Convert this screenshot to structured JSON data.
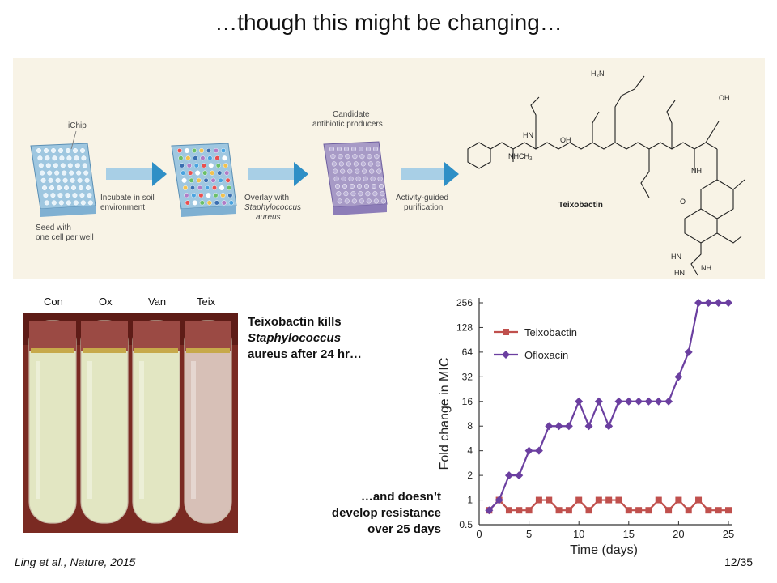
{
  "slide": {
    "title": "…though this might be changing…",
    "caption_kills_line1": "Teixobactin kills",
    "caption_kills_line2": "Staphylococcus",
    "caption_kills_line3": "aureus after 24 hr…",
    "caption_resist_line1": "…and doesn’t",
    "caption_resist_line2": "develop resistance",
    "caption_resist_line3": "over 25 days",
    "citation": "Ling et al., Nature, 2015",
    "page": "12/35"
  },
  "figure": {
    "ichip": "iChip",
    "seed": "Seed with one cell per well",
    "incubate": "Incubate in soil environment",
    "overlay": "Overlay with Staphylococcus aureus",
    "candidate": "Candidate antibiotic producers",
    "activity": "Activity-guided purification",
    "teixobactin_label": "Teixobactin",
    "mol_h2n": "H₂N",
    "mol_oh": "OH",
    "mol_nhch3": "NHCH₃",
    "mol_hn": "HN",
    "mol_nh": "NH",
    "mol_o": "O"
  },
  "tubes": {
    "labels": [
      "Con",
      "Ox",
      "Van",
      "Teix"
    ],
    "colors": {
      "background": "#7a2a22",
      "turbid": "#e2e6c2",
      "clear": "#d7c0b7"
    }
  },
  "chart_data": {
    "type": "line",
    "xlabel": "Time (days)",
    "ylabel": "Fold change in MIC",
    "xlim": [
      0,
      25
    ],
    "ylim": [
      0.5,
      256
    ],
    "y_scale": "log2",
    "x_ticks": [
      0,
      5,
      10,
      15,
      20,
      25
    ],
    "y_ticks": [
      "0.5",
      "1",
      "2",
      "4",
      "8",
      "16",
      "32",
      "64",
      "128",
      "256"
    ],
    "y_tick_values": [
      0.5,
      1,
      2,
      4,
      8,
      16,
      32,
      64,
      128,
      256
    ],
    "legend_position": "top-left",
    "grid": false,
    "series": [
      {
        "name": "Teixobactin",
        "color": "#c0504d",
        "marker": "square",
        "x": [
          1,
          2,
          3,
          4,
          5,
          6,
          7,
          8,
          9,
          10,
          11,
          12,
          13,
          14,
          15,
          16,
          17,
          18,
          19,
          20,
          21,
          22,
          23,
          24,
          25
        ],
        "values": [
          0.75,
          1,
          0.75,
          0.75,
          0.75,
          1,
          1,
          0.75,
          0.75,
          1,
          0.75,
          1,
          1,
          1,
          0.75,
          0.75,
          0.75,
          1,
          0.75,
          1,
          0.75,
          1,
          0.75,
          0.75,
          0.75
        ]
      },
      {
        "name": "Ofloxacin",
        "color": "#6b3fa0",
        "marker": "diamond",
        "x": [
          1,
          2,
          3,
          4,
          5,
          6,
          7,
          8,
          9,
          10,
          11,
          12,
          13,
          14,
          15,
          16,
          17,
          18,
          19,
          20,
          21,
          22,
          23,
          24,
          25
        ],
        "values": [
          0.75,
          1,
          2,
          2,
          4,
          4,
          8,
          8,
          8,
          16,
          8,
          16,
          8,
          16,
          16,
          16,
          16,
          16,
          16,
          32,
          64,
          256,
          256,
          256,
          256
        ]
      }
    ]
  }
}
